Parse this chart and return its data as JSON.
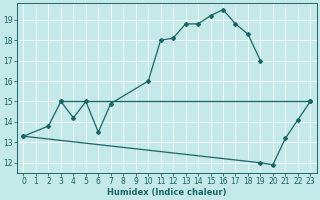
{
  "xlabel": "Humidex (Indice chaleur)",
  "bg_color": "#c5e8e8",
  "line_color": "#1a6666",
  "grid_color": "#ffffff",
  "xlim": [
    -0.5,
    23.5
  ],
  "ylim": [
    11.5,
    19.8
  ],
  "xticks": [
    0,
    1,
    2,
    3,
    4,
    5,
    6,
    7,
    8,
    9,
    10,
    11,
    12,
    13,
    14,
    15,
    16,
    17,
    18,
    19,
    20,
    21,
    22,
    23
  ],
  "yticks": [
    12,
    13,
    14,
    15,
    16,
    17,
    18,
    19
  ],
  "line1_x": [
    0,
    2,
    3,
    4,
    5,
    6,
    7,
    10,
    11,
    12,
    13,
    14,
    15,
    16,
    17,
    18,
    19
  ],
  "line1_y": [
    13.3,
    13.8,
    15.0,
    14.2,
    15.0,
    13.5,
    14.9,
    16.0,
    18.0,
    18.1,
    18.8,
    18.8,
    19.2,
    19.5,
    18.8,
    18.3,
    17.0
  ],
  "line2_x": [
    0,
    19,
    20,
    21,
    22,
    23
  ],
  "line2_y": [
    13.3,
    12.0,
    11.9,
    13.2,
    14.1,
    15.0
  ],
  "line3_x": [
    3,
    23
  ],
  "line3_y": [
    15.0,
    15.0
  ],
  "marker": "D",
  "markersize": 2.0,
  "linewidth": 0.9,
  "tick_labelsize": 5.5,
  "xlabel_fontsize": 6.0
}
